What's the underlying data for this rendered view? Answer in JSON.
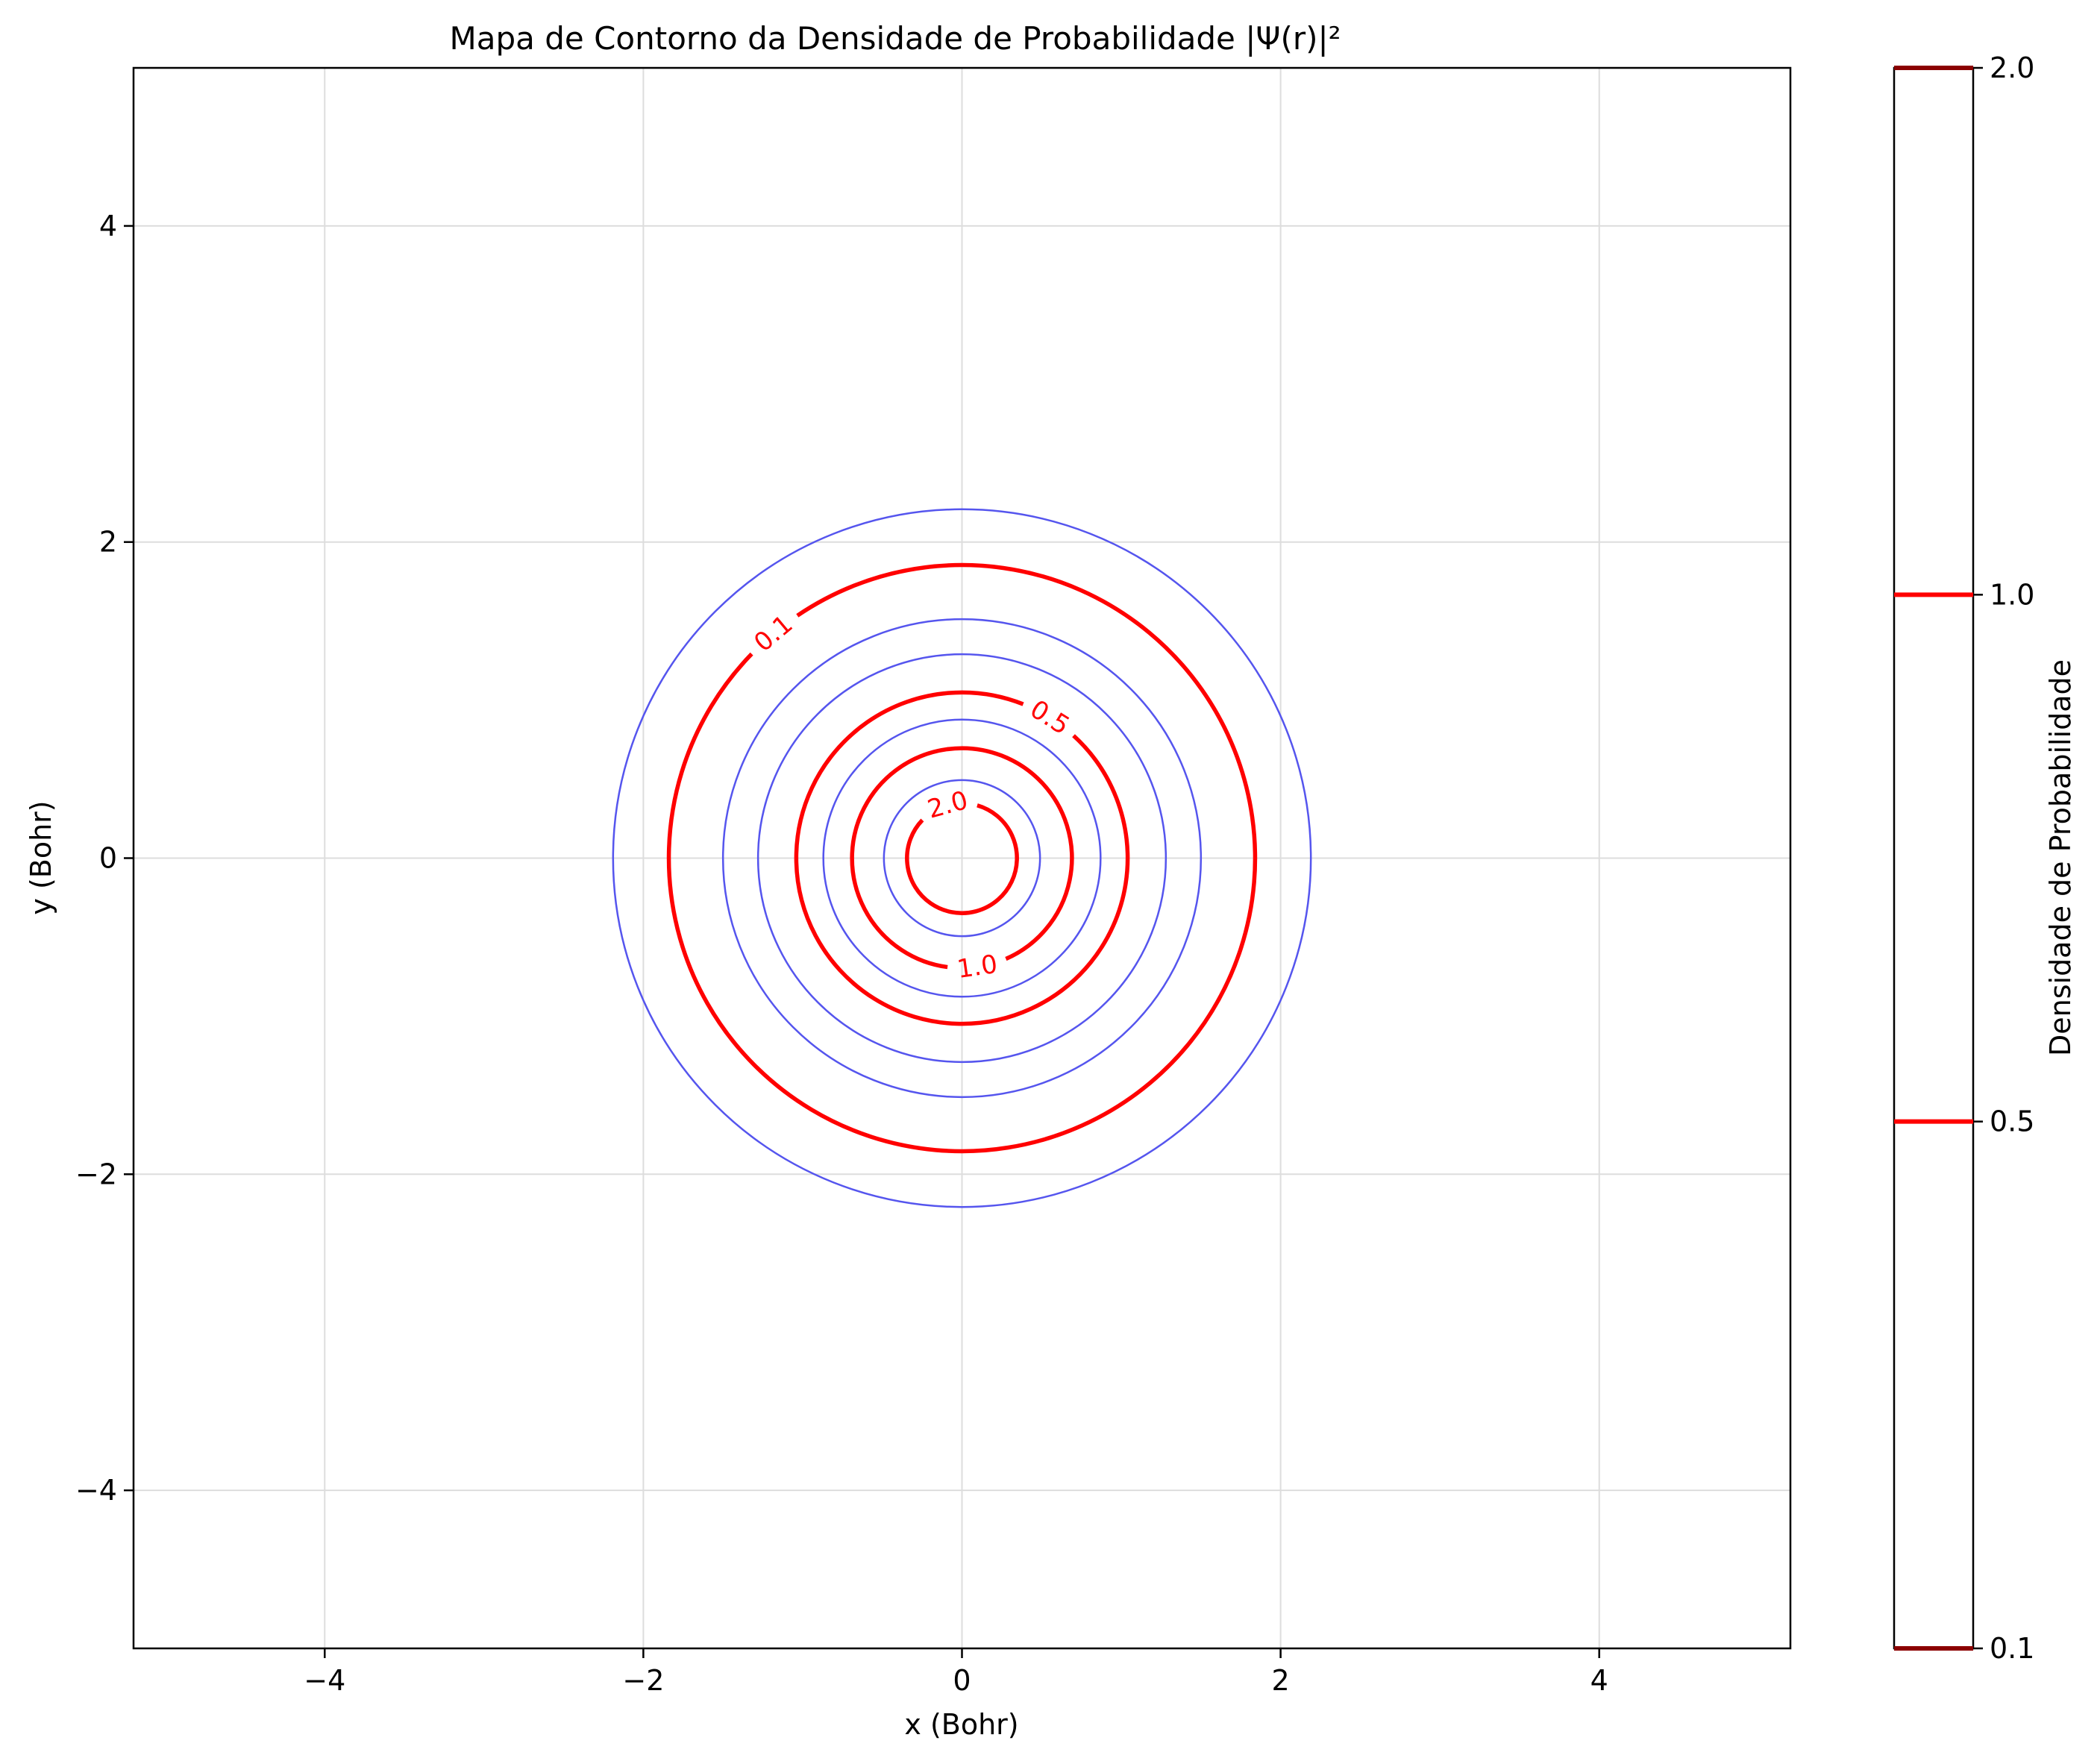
{
  "chart_data": {
    "type": "contour",
    "title": "Mapa de Contorno da Densidade de Probabilidade |Ψ(r)|²",
    "xlabel": "x (Bohr)",
    "ylabel": "y (Bohr)",
    "xlim": [
      -5.2,
      5.2
    ],
    "ylim": [
      -5,
      5
    ],
    "xticks": [
      -4,
      -2,
      0,
      2,
      4
    ],
    "yticks": [
      -4,
      -2,
      0,
      2,
      4
    ],
    "xtick_labels": [
      "−4",
      "−2",
      "0",
      "2",
      "4"
    ],
    "ytick_labels": [
      "−4",
      "−2",
      "0",
      "2",
      "4"
    ],
    "grid": true,
    "contour_colors": {
      "labeled": "#ff0000",
      "unlabeled": "#5555ee"
    },
    "labeled_contours": [
      {
        "level": 0.1,
        "label": "0.1",
        "radius": 1.84,
        "label_angle_deg": 130
      },
      {
        "level": 0.5,
        "label": "0.5",
        "radius": 1.04,
        "label_angle_deg": 58
      },
      {
        "level": 1.0,
        "label": "1.0",
        "radius": 0.69,
        "label_angle_deg": -82
      },
      {
        "level": 2.0,
        "label": "2.0",
        "radius": 0.345,
        "label_angle_deg": 105
      }
    ],
    "unlabeled_contour_radii": [
      2.19,
      1.5,
      1.28,
      0.87,
      0.49
    ],
    "colorbar": {
      "label": "Densidade de Probabilidade",
      "ticks": [
        {
          "value": 0.1,
          "label": "0.1",
          "color": "#8b0000"
        },
        {
          "value": 0.5,
          "label": "0.5",
          "color": "#ff0000"
        },
        {
          "value": 1.0,
          "label": "1.0",
          "color": "#ff0000"
        },
        {
          "value": 2.0,
          "label": "2.0",
          "color": "#8b0000"
        }
      ]
    }
  }
}
